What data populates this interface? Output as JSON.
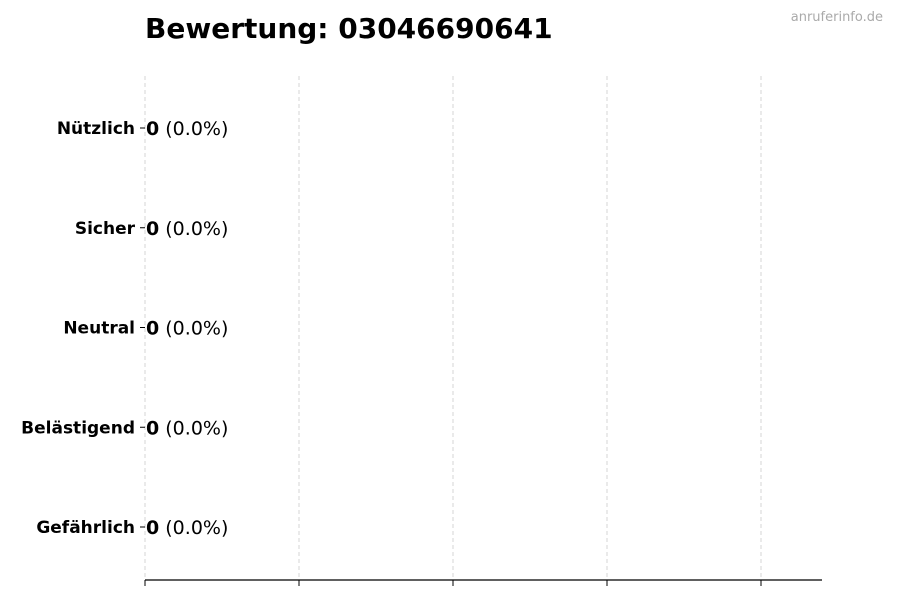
{
  "watermark": "anruferinfo.de",
  "chart_data": {
    "type": "bar",
    "orientation": "horizontal",
    "title": "Bewertung: 03046690641",
    "categories": [
      "Nützlich",
      "Sicher",
      "Neutral",
      "Belästigend",
      "Gefährlich"
    ],
    "values": [
      0,
      0,
      0,
      0,
      0
    ],
    "data_labels": [
      {
        "count": "0",
        "percent": "(0.0%)"
      },
      {
        "count": "0",
        "percent": "(0.0%)"
      },
      {
        "count": "0",
        "percent": "(0.0%)"
      },
      {
        "count": "0",
        "percent": "(0.0%)"
      },
      {
        "count": "0",
        "percent": "(0.0%)"
      }
    ],
    "xlabel": "",
    "ylabel": "",
    "xlim": [
      0,
      1
    ],
    "x_tick_count": 5,
    "x_tick_labels_shown": false,
    "grid": "vertical dashed",
    "bar_edge_color": "#000000",
    "grid_color": "#cccccc"
  }
}
